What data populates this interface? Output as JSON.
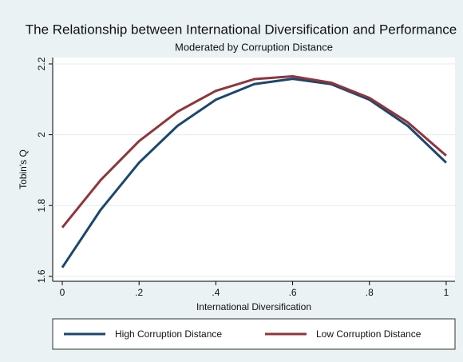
{
  "chart_data": {
    "type": "line",
    "title": "The Relationship between International Diversification and Performance",
    "subtitle": "Moderated by Corruption Distance",
    "x_label": "International Diversification",
    "y_label": "Tobin's Q",
    "x": [
      0,
      0.1,
      0.2,
      0.3,
      0.4,
      0.5,
      0.6,
      0.7,
      0.8,
      0.9,
      1
    ],
    "series": [
      {
        "name": "High Corruption Distance",
        "color": "#1a476f",
        "values": [
          1.625,
          1.788,
          1.921,
          2.025,
          2.099,
          2.143,
          2.158,
          2.143,
          2.099,
          2.025,
          1.921
        ]
      },
      {
        "name": "Low Corruption Distance",
        "color": "#90353b",
        "values": [
          1.738,
          1.872,
          1.982,
          2.065,
          2.124,
          2.157,
          2.165,
          2.147,
          2.104,
          2.035,
          1.941
        ]
      }
    ],
    "xlim": [
      -0.025,
      1.023
    ],
    "ylim": [
      1.586,
      2.218
    ],
    "xticks": [
      0,
      {
        "value": 0.2,
        "label": ".2"
      },
      {
        "value": 0.4,
        "label": ".4"
      },
      {
        "value": 0.6,
        "label": ".6"
      },
      {
        "value": 0.8,
        "label": ".8"
      },
      1
    ],
    "yticks": [
      1.6,
      1.8,
      2,
      2.2
    ],
    "grid": true,
    "legend": "bottom"
  }
}
